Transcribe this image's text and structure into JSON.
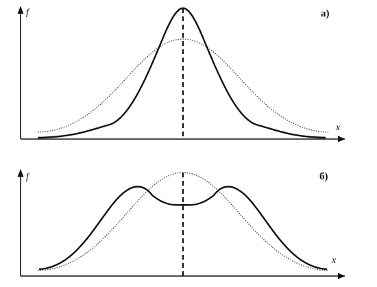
{
  "panels": [
    {
      "label": "а)",
      "y_axis": "f",
      "x_axis": "x"
    },
    {
      "label": "б)",
      "y_axis": "f",
      "x_axis": "x"
    }
  ]
}
